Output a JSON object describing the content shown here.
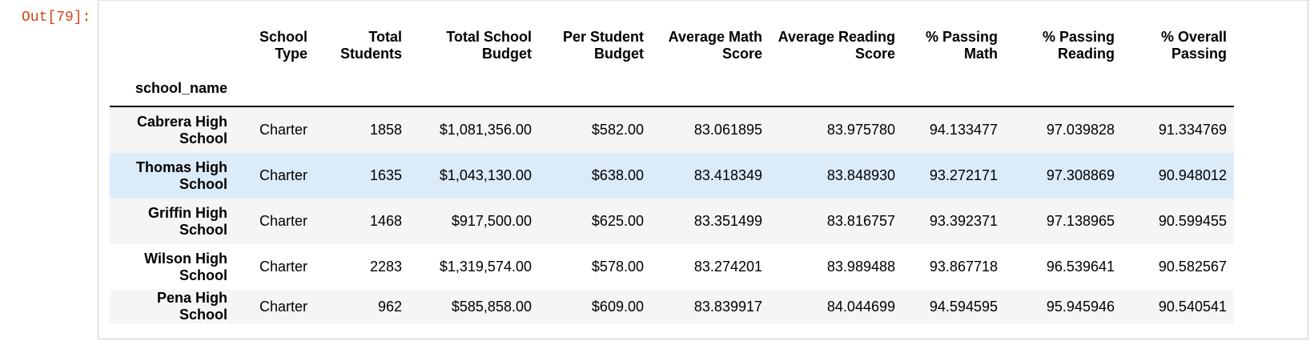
{
  "cell": {
    "prompt": "Out[79]:"
  },
  "table": {
    "index_name": "school_name",
    "columns": [
      "School Type",
      "Total Students",
      "Total School Budget",
      "Per Student Budget",
      "Average Math Score",
      "Average Reading Score",
      "% Passing Math",
      "% Passing Reading",
      "% Overall Passing"
    ],
    "column_lines": [
      [
        "School",
        "Type"
      ],
      [
        "Total",
        "Students"
      ],
      [
        "Total School",
        "Budget"
      ],
      [
        "Per Student",
        "Budget"
      ],
      [
        "Average Math",
        "Score"
      ],
      [
        "Average Reading",
        "Score"
      ],
      [
        "% Passing",
        "Math"
      ],
      [
        "% Passing",
        "Reading"
      ],
      [
        "% Overall",
        "Passing"
      ]
    ],
    "rows": [
      {
        "name_lines": [
          "Cabrera High",
          "School"
        ],
        "values": [
          "Charter",
          "1858",
          "$1,081,356.00",
          "$582.00",
          "83.061895",
          "83.975780",
          "94.133477",
          "97.039828",
          "91.334769"
        ]
      },
      {
        "name_lines": [
          "Thomas High",
          "School"
        ],
        "values": [
          "Charter",
          "1635",
          "$1,043,130.00",
          "$638.00",
          "83.418349",
          "83.848930",
          "93.272171",
          "97.308869",
          "90.948012"
        ]
      },
      {
        "name_lines": [
          "Griffin High",
          "School"
        ],
        "values": [
          "Charter",
          "1468",
          "$917,500.00",
          "$625.00",
          "83.351499",
          "83.816757",
          "93.392371",
          "97.138965",
          "90.599455"
        ]
      },
      {
        "name_lines": [
          "Wilson High",
          "School"
        ],
        "values": [
          "Charter",
          "2283",
          "$1,319,574.00",
          "$578.00",
          "83.274201",
          "83.989488",
          "93.867718",
          "96.539641",
          "90.582567"
        ]
      },
      {
        "name_lines": [
          "Pena High School"
        ],
        "values": [
          "Charter",
          "962",
          "$585,858.00",
          "$609.00",
          "83.839917",
          "84.044699",
          "94.594595",
          "95.945946",
          "90.540541"
        ]
      }
    ]
  }
}
